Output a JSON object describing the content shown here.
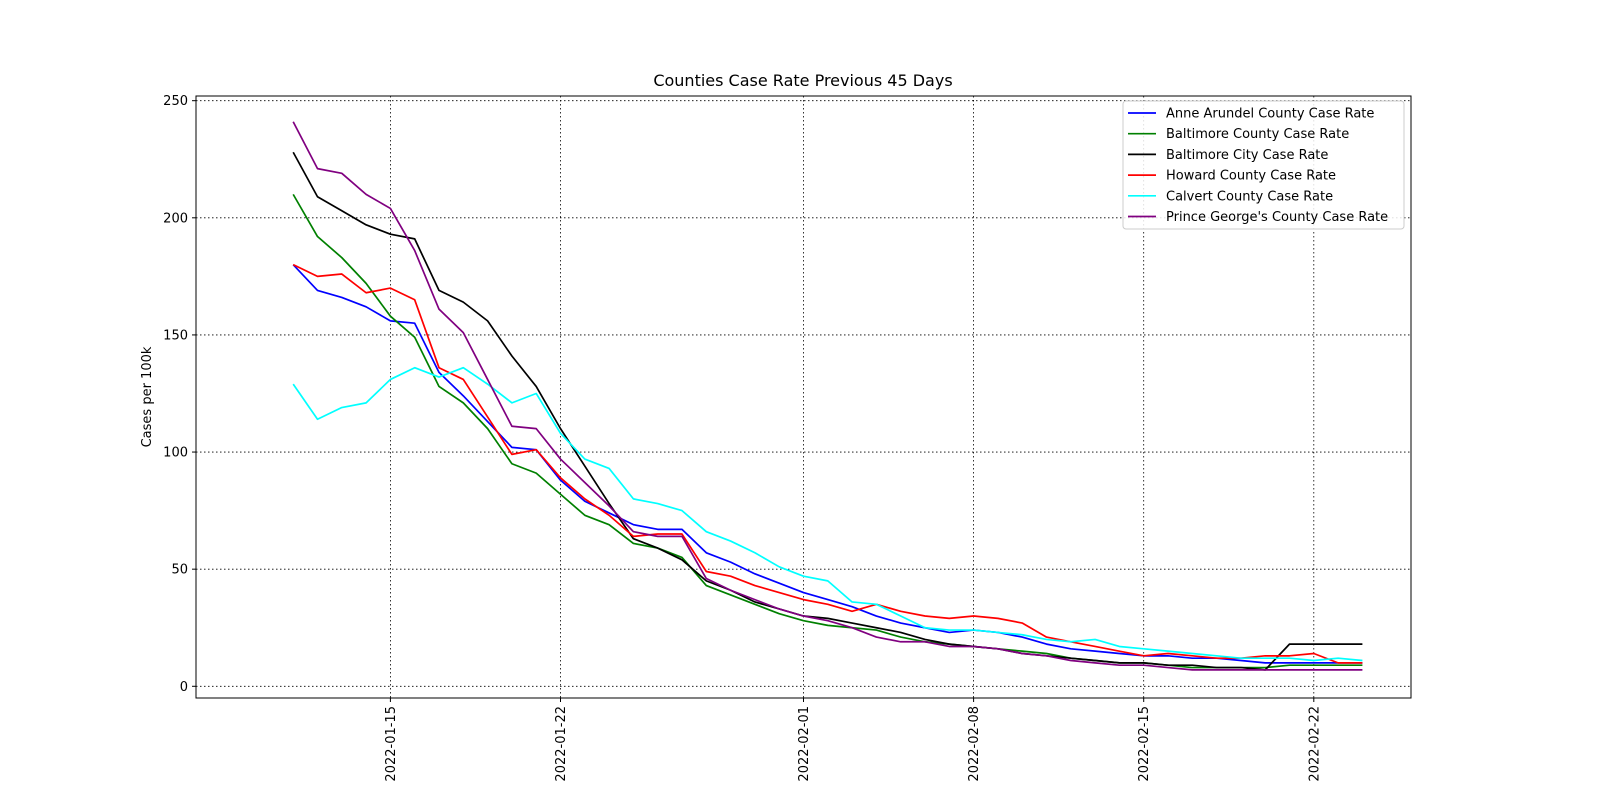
{
  "chart_data": {
    "type": "line",
    "title": "Counties Case Rate Previous 45 Days",
    "xlabel": "",
    "ylabel": "Cases per 100k",
    "x_start": "2022-01-11",
    "x": [
      "2022-01-11",
      "2022-01-12",
      "2022-01-13",
      "2022-01-14",
      "2022-01-15",
      "2022-01-16",
      "2022-01-17",
      "2022-01-18",
      "2022-01-19",
      "2022-01-20",
      "2022-01-21",
      "2022-01-22",
      "2022-01-23",
      "2022-01-24",
      "2022-01-25",
      "2022-01-26",
      "2022-01-27",
      "2022-01-28",
      "2022-01-29",
      "2022-01-30",
      "2022-01-31",
      "2022-02-01",
      "2022-02-02",
      "2022-02-03",
      "2022-02-04",
      "2022-02-05",
      "2022-02-06",
      "2022-02-07",
      "2022-02-08",
      "2022-02-09",
      "2022-02-10",
      "2022-02-11",
      "2022-02-12",
      "2022-02-13",
      "2022-02-14",
      "2022-02-15",
      "2022-02-16",
      "2022-02-17",
      "2022-02-18",
      "2022-02-19",
      "2022-02-20",
      "2022-02-21",
      "2022-02-22",
      "2022-02-23",
      "2022-02-24"
    ],
    "xticks": [
      "2022-01-15",
      "2022-01-22",
      "2022-02-01",
      "2022-02-08",
      "2022-02-15",
      "2022-02-22"
    ],
    "xlim": [
      "2022-01-07",
      "2022-02-26"
    ],
    "ylim": [
      -5,
      252
    ],
    "yticks": [
      0,
      50,
      100,
      150,
      200,
      250
    ],
    "grid": true,
    "legend_position": "top-right",
    "series": [
      {
        "name": "Anne Arundel County Case Rate",
        "color": "#0000ff",
        "values": [
          180,
          169,
          166,
          162,
          156,
          155,
          134,
          124,
          113,
          102,
          101,
          88,
          79,
          74,
          69,
          67,
          67,
          57,
          53,
          48,
          44,
          40,
          37,
          34,
          30,
          27,
          25,
          23,
          24,
          23,
          21,
          18,
          16,
          15,
          14,
          13,
          13,
          12,
          12,
          11,
          10,
          10,
          10,
          10,
          10
        ]
      },
      {
        "name": "Baltimore County Case Rate",
        "color": "#008000",
        "values": [
          210,
          192,
          183,
          172,
          158,
          149,
          128,
          121,
          110,
          95,
          91,
          82,
          73,
          69,
          61,
          59,
          55,
          43,
          39,
          35,
          31,
          28,
          26,
          25,
          24,
          21,
          19,
          18,
          17,
          16,
          15,
          14,
          12,
          11,
          10,
          10,
          9,
          8,
          8,
          8,
          8,
          9,
          9,
          9,
          9
        ]
      },
      {
        "name": "Baltimore City Case Rate",
        "color": "#000000",
        "values": [
          228,
          209,
          203,
          197,
          193,
          191,
          169,
          164,
          156,
          141,
          128,
          110,
          94,
          78,
          63,
          59,
          54,
          45,
          41,
          36,
          33,
          30,
          29,
          27,
          25,
          23,
          20,
          18,
          17,
          16,
          14,
          13,
          12,
          11,
          10,
          10,
          9,
          9,
          8,
          8,
          7,
          18,
          18,
          18,
          18
        ]
      },
      {
        "name": "Howard County Case Rate",
        "color": "#ff0000",
        "values": [
          180,
          175,
          176,
          168,
          170,
          165,
          136,
          131,
          115,
          99,
          101,
          89,
          80,
          73,
          64,
          65,
          65,
          49,
          47,
          43,
          40,
          37,
          35,
          32,
          35,
          32,
          30,
          29,
          30,
          29,
          27,
          21,
          19,
          17,
          15,
          13,
          14,
          13,
          12,
          12,
          13,
          13,
          14,
          10,
          10
        ]
      },
      {
        "name": "Calvert County Case Rate",
        "color": "#00ffff",
        "values": [
          129,
          114,
          119,
          121,
          131,
          136,
          132,
          136,
          129,
          121,
          125,
          108,
          97,
          93,
          80,
          78,
          75,
          66,
          62,
          57,
          51,
          47,
          45,
          36,
          35,
          30,
          25,
          24,
          24,
          23,
          22,
          20,
          19,
          20,
          17,
          16,
          15,
          14,
          13,
          12,
          12,
          12,
          11,
          12,
          11
        ]
      },
      {
        "name": "Prince George's County Case Rate",
        "color": "#800080",
        "values": [
          241,
          221,
          219,
          210,
          204,
          186,
          161,
          151,
          131,
          111,
          110,
          97,
          87,
          77,
          66,
          64,
          64,
          46,
          41,
          37,
          33,
          30,
          28,
          25,
          21,
          19,
          19,
          17,
          17,
          16,
          14,
          13,
          11,
          10,
          9,
          9,
          8,
          7,
          7,
          7,
          7,
          7,
          7,
          7,
          7
        ]
      }
    ]
  }
}
